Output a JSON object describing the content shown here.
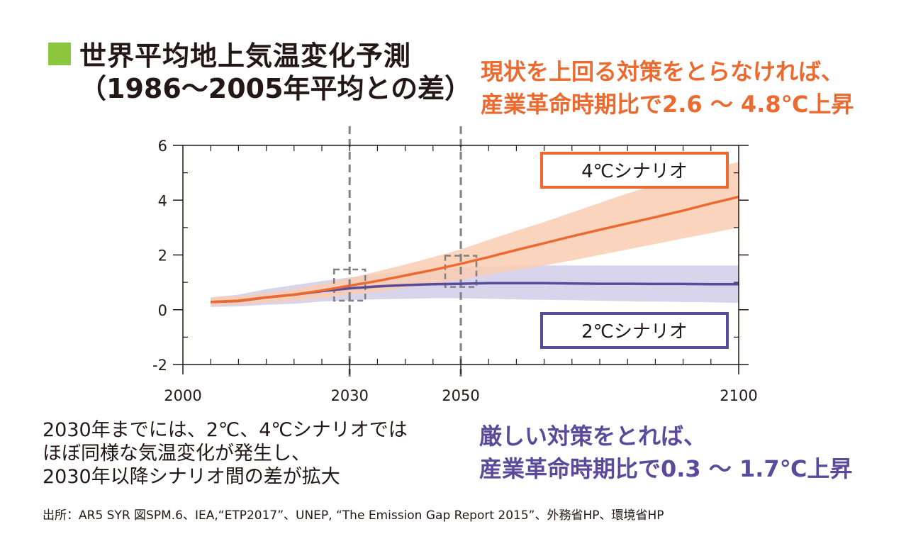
{
  "title": {
    "line1": "世界平均地上気温変化予測",
    "line2": "（1986〜2005年平均との差）"
  },
  "colors": {
    "accent_green": "#8cc63f",
    "orange": "#ea6a2f",
    "orange_band": "#f9cdb1",
    "purple": "#5a4b9a",
    "purple_band": "#cdc9e6",
    "grid_dash": "#808080"
  },
  "orange_annotation": {
    "line1": "現状を上回る対策をとらなければ、",
    "line2": "産業革命時期比で2.6 〜 4.8℃上昇"
  },
  "purple_annotation": {
    "line1": "厳しい対策をとれば、",
    "line2": "産業革命時期比で0.3 〜 1.7℃上昇"
  },
  "note": {
    "line1": "2030年までには、2℃、4℃シナリオでは",
    "line2": "ほぼ同様な気温変化が発生し、",
    "line3": "2030年以降シナリオ間の差が拡大"
  },
  "source": "出所：AR5 SYR 図SPM.6、IEA,“ETP2017”、UNEP, “The Emission Gap Report 2015”、外務省HP、環境省HP",
  "chart_data": {
    "type": "line",
    "title": "世界平均地上気温変化予測",
    "xlabel": "",
    "ylabel": "",
    "xlim": [
      2000,
      2100
    ],
    "ylim": [
      -2,
      6
    ],
    "xticks": [
      2000,
      2030,
      2050,
      2100
    ],
    "yticks": [
      -2,
      0,
      2,
      4,
      6
    ],
    "reference_lines_x": [
      2030,
      2050
    ],
    "highlight_boxes": [
      {
        "x": 2030,
        "y_center": 0.9
      },
      {
        "x": 2050,
        "y_center": 1.4
      }
    ],
    "series": [
      {
        "name": "4℃シナリオ",
        "x": [
          2005,
          2010,
          2015,
          2020,
          2025,
          2030,
          2035,
          2040,
          2045,
          2050,
          2055,
          2060,
          2065,
          2070,
          2075,
          2080,
          2085,
          2090,
          2095,
          2100
        ],
        "values": [
          0.28,
          0.33,
          0.45,
          0.55,
          0.7,
          0.88,
          1.05,
          1.25,
          1.45,
          1.68,
          1.92,
          2.18,
          2.43,
          2.68,
          2.92,
          3.15,
          3.38,
          3.62,
          3.88,
          4.12
        ],
        "lower": [
          0.15,
          0.18,
          0.25,
          0.33,
          0.42,
          0.55,
          0.65,
          0.8,
          0.95,
          1.1,
          1.28,
          1.45,
          1.62,
          1.8,
          2.0,
          2.2,
          2.4,
          2.6,
          2.8,
          3.0
        ],
        "upper": [
          0.45,
          0.5,
          0.62,
          0.75,
          0.95,
          1.15,
          1.4,
          1.65,
          1.92,
          2.2,
          2.55,
          2.88,
          3.2,
          3.55,
          3.9,
          4.25,
          4.55,
          4.9,
          5.15,
          5.4
        ]
      },
      {
        "name": "2℃シナリオ",
        "x": [
          2005,
          2010,
          2015,
          2020,
          2025,
          2030,
          2035,
          2040,
          2045,
          2050,
          2055,
          2060,
          2065,
          2070,
          2075,
          2080,
          2085,
          2090,
          2095,
          2100
        ],
        "values": [
          0.28,
          0.32,
          0.45,
          0.55,
          0.68,
          0.78,
          0.85,
          0.9,
          0.93,
          0.95,
          0.97,
          0.97,
          0.97,
          0.96,
          0.95,
          0.95,
          0.94,
          0.94,
          0.93,
          0.93
        ],
        "lower": [
          0.1,
          0.12,
          0.18,
          0.22,
          0.3,
          0.35,
          0.38,
          0.4,
          0.42,
          0.42,
          0.4,
          0.38,
          0.36,
          0.35,
          0.33,
          0.31,
          0.3,
          0.28,
          0.27,
          0.25
        ],
        "upper": [
          0.45,
          0.55,
          0.75,
          0.9,
          1.05,
          1.18,
          1.3,
          1.4,
          1.48,
          1.55,
          1.58,
          1.6,
          1.62,
          1.62,
          1.62,
          1.62,
          1.62,
          1.62,
          1.62,
          1.62
        ]
      }
    ],
    "legend": [
      {
        "label": "4℃シナリオ",
        "placement": "top-right"
      },
      {
        "label": "2℃シナリオ",
        "placement": "lower-right"
      }
    ]
  }
}
